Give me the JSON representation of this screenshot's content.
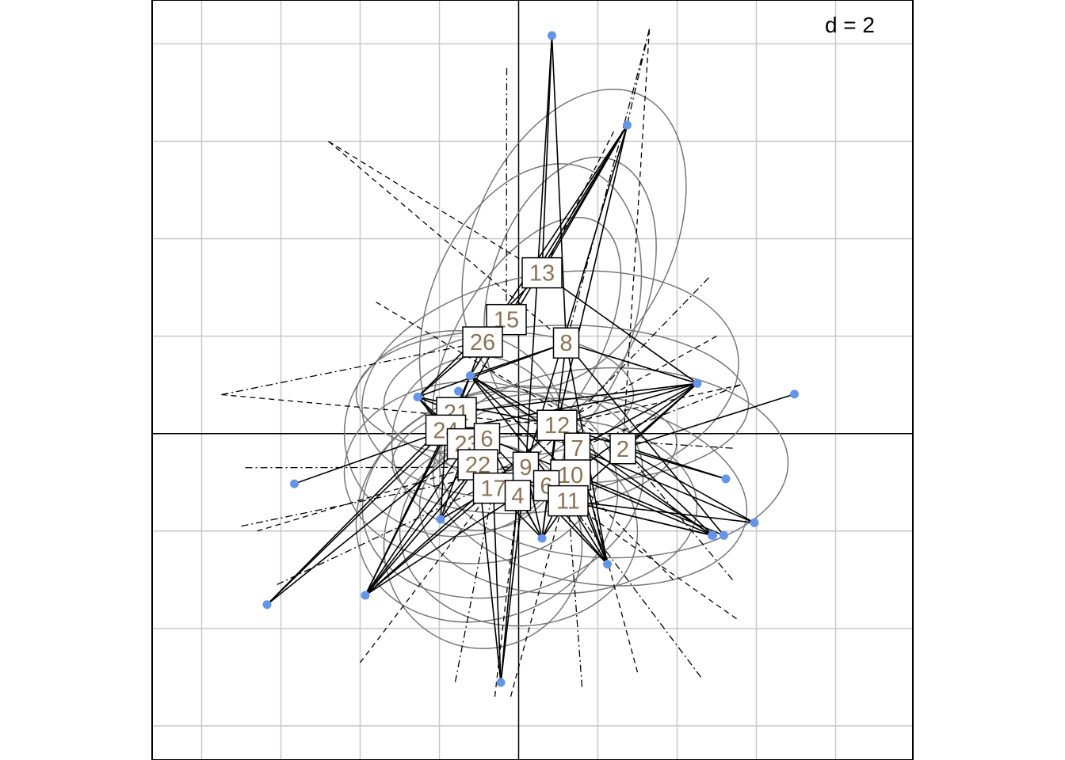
{
  "chart_data": {
    "type": "scatter",
    "subtype": "star-ellipse class plot",
    "scale_label": "d = 2",
    "grid": true,
    "x_range": [
      -9.25,
      9.95
    ],
    "y_range": [
      -6.7,
      8.9
    ],
    "grid_step": 2,
    "colors": {
      "points": "#6495ED",
      "labels": "#8B7355",
      "ellipses": "#777777",
      "grid": "#C8C8C8",
      "axes": "#000000"
    },
    "points": [
      {
        "x": 0.84,
        "y": 8.17
      },
      {
        "x": 2.74,
        "y": 6.33
      },
      {
        "x": 4.51,
        "y": 1.03
      },
      {
        "x": 6.96,
        "y": 0.81
      },
      {
        "x": -2.55,
        "y": 0.75
      },
      {
        "x": -1.22,
        "y": 1.19
      },
      {
        "x": -1.52,
        "y": 0.87
      },
      {
        "x": -5.66,
        "y": -1.03
      },
      {
        "x": -6.35,
        "y": -3.51
      },
      {
        "x": -3.87,
        "y": -3.32
      },
      {
        "x": -1.97,
        "y": -1.76
      },
      {
        "x": 0.59,
        "y": -2.15
      },
      {
        "x": 2.24,
        "y": -2.68
      },
      {
        "x": 4.9,
        "y": -2.09
      },
      {
        "x": 4.88,
        "y": -2.09
      },
      {
        "x": 5.18,
        "y": -2.09
      },
      {
        "x": 5.95,
        "y": -1.83
      },
      {
        "x": 5.23,
        "y": -0.93
      },
      {
        "x": -0.45,
        "y": -5.11
      }
    ],
    "class_labels": [
      {
        "label": "13",
        "x": 0.59,
        "y": 3.3
      },
      {
        "label": "15",
        "x": -0.31,
        "y": 2.34
      },
      {
        "label": "26",
        "x": -0.91,
        "y": 1.88
      },
      {
        "label": "8",
        "x": 1.2,
        "y": 1.86
      },
      {
        "label": "21",
        "x": -1.57,
        "y": 0.43
      },
      {
        "label": "24",
        "x": -1.84,
        "y": 0.07
      },
      {
        "label": "23",
        "x": -1.3,
        "y": -0.21
      },
      {
        "label": "6",
        "x": -0.8,
        "y": -0.1
      },
      {
        "label": "22",
        "x": -1.03,
        "y": -0.64
      },
      {
        "label": "12",
        "x": 0.97,
        "y": 0.17
      },
      {
        "label": "7",
        "x": 1.48,
        "y": -0.3
      },
      {
        "label": "2",
        "x": 2.63,
        "y": -0.31
      },
      {
        "label": "9",
        "x": 0.18,
        "y": -0.69
      },
      {
        "label": "10",
        "x": 1.31,
        "y": -0.85
      },
      {
        "label": "17",
        "x": -0.64,
        "y": -1.12
      },
      {
        "label": "4",
        "x": -0.02,
        "y": -1.27
      },
      {
        "label": "6",
        "x": 0.7,
        "y": -1.07
      },
      {
        "label": "11",
        "x": 1.25,
        "y": -1.38
      }
    ],
    "solid_edges": [
      [
        0,
        9
      ],
      [
        0,
        13
      ],
      [
        0,
        8
      ],
      [
        1,
        13
      ],
      [
        1,
        15
      ],
      [
        1,
        12
      ],
      [
        1,
        9
      ],
      [
        1,
        21
      ],
      [
        1,
        26
      ],
      [
        2,
        13
      ],
      [
        2,
        8
      ],
      [
        2,
        12
      ],
      [
        2,
        24
      ],
      [
        2,
        21
      ],
      [
        2,
        7
      ],
      [
        2,
        2
      ],
      [
        2,
        10
      ],
      [
        2,
        11
      ],
      [
        4,
        13
      ],
      [
        4,
        15
      ],
      [
        4,
        24
      ],
      [
        4,
        21
      ],
      [
        4,
        22
      ],
      [
        4,
        17
      ],
      [
        4,
        12
      ],
      [
        4,
        8
      ],
      [
        4,
        23
      ],
      [
        5,
        26
      ],
      [
        5,
        15
      ],
      [
        5,
        21
      ],
      [
        5,
        24
      ],
      [
        5,
        12
      ],
      [
        5,
        8
      ],
      [
        5,
        7
      ],
      [
        5,
        11
      ],
      [
        5,
        10
      ],
      [
        3,
        2
      ],
      [
        7,
        24
      ],
      [
        8,
        24
      ],
      [
        8,
        21
      ],
      [
        8,
        23
      ],
      [
        9,
        24
      ],
      [
        9,
        21
      ],
      [
        9,
        23
      ],
      [
        9,
        22
      ],
      [
        9,
        17
      ],
      [
        9,
        4
      ],
      [
        9,
        12
      ],
      [
        9,
        6
      ],
      [
        10,
        24
      ],
      [
        10,
        22
      ],
      [
        10,
        17
      ],
      [
        10,
        23
      ],
      [
        11,
        12
      ],
      [
        11,
        9
      ],
      [
        11,
        4
      ],
      [
        11,
        6
      ],
      [
        11,
        10
      ],
      [
        11,
        11
      ],
      [
        11,
        17
      ],
      [
        11,
        8
      ],
      [
        12,
        11
      ],
      [
        12,
        10
      ],
      [
        12,
        7
      ],
      [
        12,
        8
      ],
      [
        12,
        9
      ],
      [
        12,
        6
      ],
      [
        12,
        12
      ],
      [
        13,
        2
      ],
      [
        13,
        11
      ],
      [
        13,
        10
      ],
      [
        13,
        7
      ],
      [
        14,
        12
      ],
      [
        14,
        11
      ],
      [
        15,
        8
      ],
      [
        15,
        6
      ],
      [
        16,
        2
      ],
      [
        16,
        11
      ],
      [
        16,
        7
      ],
      [
        17,
        2
      ],
      [
        17,
        12
      ],
      [
        18,
        17
      ],
      [
        18,
        22
      ],
      [
        18,
        4
      ],
      [
        18,
        9
      ]
    ],
    "dashed_edges": [
      [
        -4.8,
        6.0,
        0.59,
        3.3
      ],
      [
        3.3,
        8.3,
        1.2,
        1.86
      ],
      [
        -4.8,
        6.0,
        1.2,
        1.86
      ],
      [
        3.3,
        8.3,
        0.97,
        0.17
      ],
      [
        2.4,
        6.2,
        0.59,
        3.3
      ],
      [
        -0.3,
        7.5,
        -0.31,
        2.34
      ],
      [
        3.3,
        8.3,
        2.63,
        -0.31
      ],
      [
        4.8,
        3.2,
        0.18,
        -0.69
      ],
      [
        5.6,
        1.0,
        0.97,
        0.17
      ],
      [
        5.6,
        1.0,
        1.48,
        -0.3
      ],
      [
        5.0,
        2.0,
        0.97,
        0.17
      ],
      [
        5.4,
        -0.3,
        -1.84,
        0.07
      ],
      [
        -3.6,
        2.7,
        2.63,
        -0.31
      ],
      [
        -7.5,
        0.8,
        -0.91,
        1.88
      ],
      [
        -7.5,
        0.8,
        0.97,
        0.17
      ],
      [
        -6.9,
        -0.7,
        0.18,
        -0.69
      ],
      [
        -6.6,
        -2.0,
        -1.03,
        -0.64
      ],
      [
        -6.1,
        -3.1,
        0.18,
        -0.69
      ],
      [
        -4.0,
        -4.7,
        -0.64,
        -1.12
      ],
      [
        -1.6,
        -5.1,
        -0.64,
        -1.12
      ],
      [
        -0.2,
        -5.4,
        1.31,
        -0.85
      ],
      [
        1.6,
        -5.2,
        1.25,
        -1.38
      ],
      [
        3.0,
        -4.9,
        1.48,
        -0.3
      ],
      [
        5.4,
        -3.0,
        2.63,
        -0.31
      ],
      [
        5.5,
        -3.8,
        0.7,
        -1.07
      ],
      [
        4.6,
        -5.0,
        1.25,
        -1.38
      ],
      [
        -0.6,
        -5.4,
        -0.02,
        -1.27
      ],
      [
        -7.0,
        -1.9,
        0.18,
        -0.69
      ],
      [
        3.9,
        -3.0,
        1.31,
        -0.85
      ]
    ],
    "ellipses": [
      {
        "cx": 1.4,
        "cy": 4.0,
        "rx": 4.0,
        "ry": 2.5,
        "angle": 65
      },
      {
        "cx": 0.3,
        "cy": 2.4,
        "rx": 4.0,
        "ry": 2.6,
        "angle": 70
      },
      {
        "cx": 1.3,
        "cy": 3.0,
        "rx": 3.4,
        "ry": 2.0,
        "angle": 72
      },
      {
        "cx": 0.2,
        "cy": 1.8,
        "rx": 3.6,
        "ry": 1.8,
        "angle": 60
      },
      {
        "cx": 0.8,
        "cy": 1.0,
        "rx": 4.8,
        "ry": 2.8,
        "angle": 10
      },
      {
        "cx": 1.2,
        "cy": 0.6,
        "rx": 4.6,
        "ry": 2.0,
        "angle": 0
      },
      {
        "cx": 2.4,
        "cy": -0.6,
        "rx": 4.4,
        "ry": 2.4,
        "angle": 0
      },
      {
        "cx": 1.8,
        "cy": -1.2,
        "rx": 4.0,
        "ry": 2.3,
        "angle": -10
      },
      {
        "cx": 1.0,
        "cy": -1.5,
        "rx": 3.5,
        "ry": 2.2,
        "angle": 0
      },
      {
        "cx": -0.4,
        "cy": -1.2,
        "rx": 3.6,
        "ry": 2.6,
        "angle": 15
      },
      {
        "cx": -0.8,
        "cy": -1.5,
        "rx": 3.4,
        "ry": 2.8,
        "angle": 25
      },
      {
        "cx": -1.2,
        "cy": -0.8,
        "rx": 3.2,
        "ry": 2.3,
        "angle": 0
      },
      {
        "cx": -1.6,
        "cy": 0.0,
        "rx": 2.8,
        "ry": 2.6,
        "angle": 0
      },
      {
        "cx": -0.6,
        "cy": 0.8,
        "rx": 3.5,
        "ry": 1.6,
        "angle": 0
      },
      {
        "cx": 0.0,
        "cy": -2.0,
        "rx": 3.0,
        "ry": 2.4,
        "angle": 0
      },
      {
        "cx": -0.9,
        "cy": -2.3,
        "rx": 2.5,
        "ry": 2.6,
        "angle": 0
      },
      {
        "cx": -1.0,
        "cy": -0.2,
        "rx": 2.2,
        "ry": 2.2,
        "angle": 0
      },
      {
        "cx": 0.4,
        "cy": -0.4,
        "rx": 3.6,
        "ry": 1.5,
        "angle": 5
      }
    ]
  }
}
